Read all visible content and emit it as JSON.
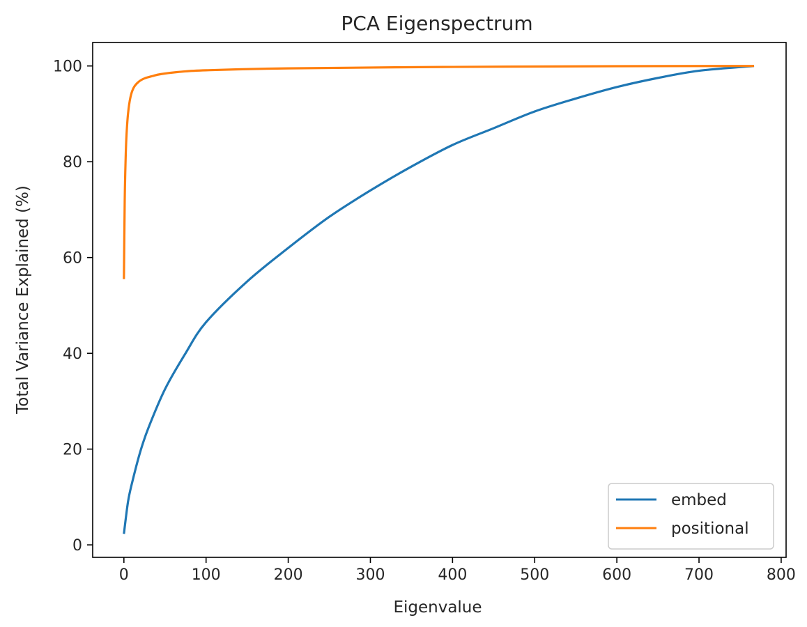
{
  "chart_data": {
    "type": "line",
    "title": "PCA Eigenspectrum",
    "xlabel": "Eigenvalue",
    "ylabel": "Total Variance Explained (%)",
    "xlim": [
      -38,
      806
    ],
    "ylim": [
      -2.6,
      104.9
    ],
    "xticks": [
      0,
      100,
      200,
      300,
      400,
      500,
      600,
      700,
      800
    ],
    "yticks": [
      0,
      20,
      40,
      60,
      80,
      100
    ],
    "grid": false,
    "legend_position": "bottom-right",
    "series": [
      {
        "name": "embed",
        "color": "#1f77b4",
        "x": [
          0,
          5,
          10,
          20,
          30,
          50,
          75,
          100,
          150,
          200,
          250,
          300,
          350,
          400,
          450,
          500,
          550,
          600,
          650,
          700,
          767
        ],
        "y": [
          2.3,
          9,
          13,
          19.5,
          24.5,
          32.5,
          40,
          46.5,
          55,
          62,
          68.5,
          74,
          79,
          83.5,
          87,
          90.5,
          93.2,
          95.6,
          97.5,
          99,
          100
        ]
      },
      {
        "name": "positional",
        "color": "#ff7f0e",
        "x": [
          0,
          1,
          2,
          3,
          5,
          8,
          12,
          18,
          25,
          35,
          45,
          70,
          100,
          200,
          400,
          600,
          767
        ],
        "y": [
          55.5,
          72,
          80,
          85,
          90,
          93.5,
          95.5,
          96.7,
          97.4,
          97.9,
          98.3,
          98.8,
          99.1,
          99.5,
          99.8,
          99.95,
          100
        ]
      }
    ]
  }
}
